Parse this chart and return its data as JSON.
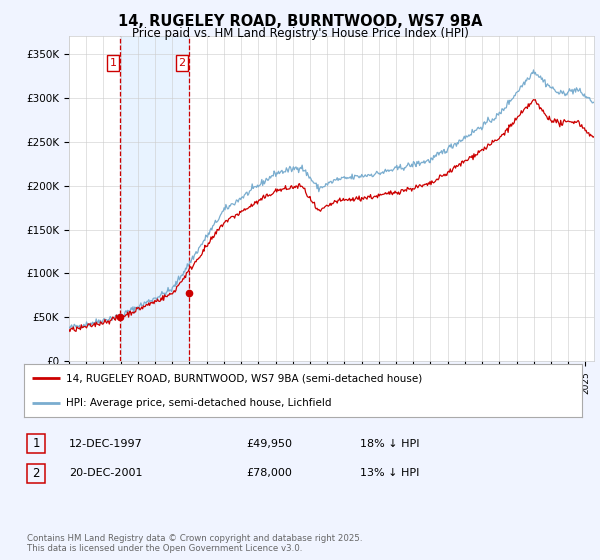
{
  "title_line1": "14, RUGELEY ROAD, BURNTWOOD, WS7 9BA",
  "title_line2": "Price paid vs. HM Land Registry's House Price Index (HPI)",
  "ylim": [
    0,
    370000
  ],
  "yticks": [
    0,
    50000,
    100000,
    150000,
    200000,
    250000,
    300000,
    350000
  ],
  "ytick_labels": [
    "£0",
    "£50K",
    "£100K",
    "£150K",
    "£200K",
    "£250K",
    "£300K",
    "£350K"
  ],
  "bg_color": "#f0f4ff",
  "plot_bg_color": "#ffffff",
  "red_color": "#cc0000",
  "blue_color": "#7aadcf",
  "sale1_year": 1997.96,
  "sale1_price": 49950,
  "sale2_year": 2001.97,
  "sale2_price": 78000,
  "xmin": 1995,
  "xmax": 2025.5,
  "legend_label_red": "14, RUGELEY ROAD, BURNTWOOD, WS7 9BA (semi-detached house)",
  "legend_label_blue": "HPI: Average price, semi-detached house, Lichfield",
  "footnote": "Contains HM Land Registry data © Crown copyright and database right 2025.\nThis data is licensed under the Open Government Licence v3.0.",
  "table_row1": [
    "1",
    "12-DEC-1997",
    "£49,950",
    "18% ↓ HPI"
  ],
  "table_row2": [
    "2",
    "20-DEC-2001",
    "£78,000",
    "13% ↓ HPI"
  ],
  "noise_scale_blue": 1800,
  "noise_scale_red": 1500,
  "rand_seed": 42
}
